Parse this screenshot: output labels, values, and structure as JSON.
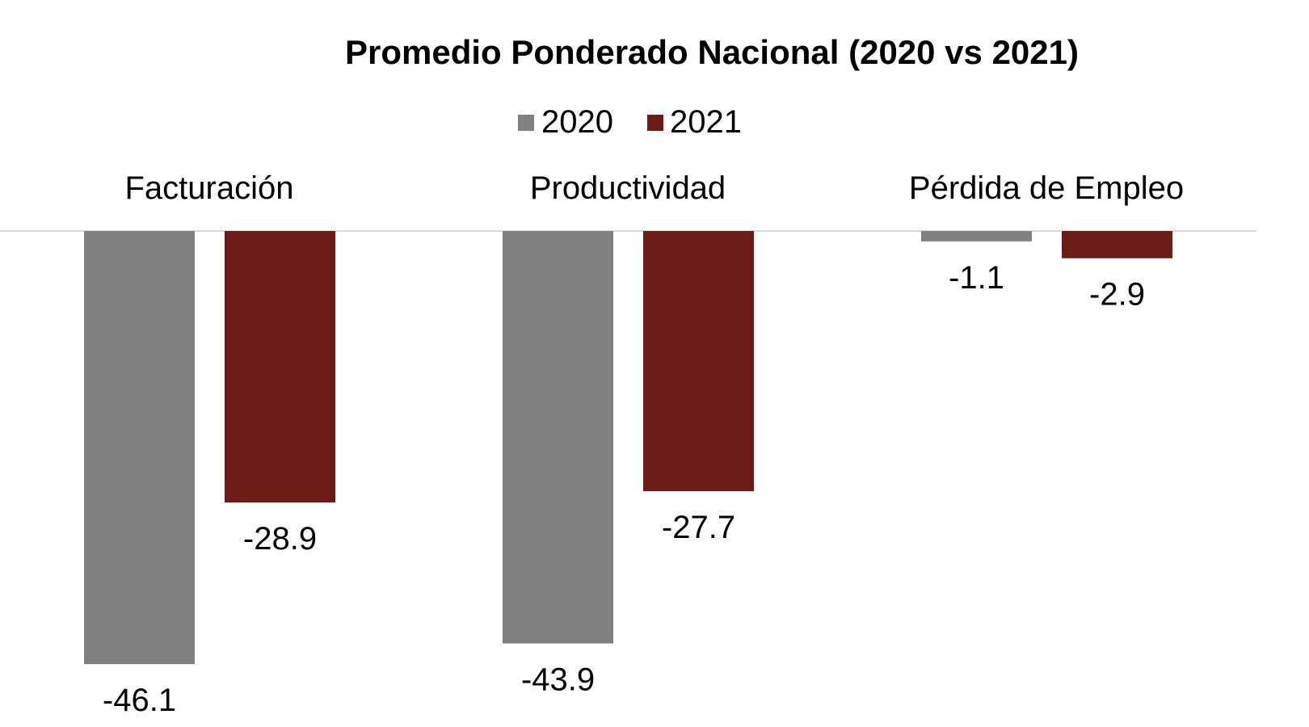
{
  "chart_data": {
    "type": "bar",
    "title": "Promedio Ponderado Nacional (2020 vs 2021)",
    "categories": [
      "Facturación",
      "Productividad",
      "Pérdida de Empleo"
    ],
    "series": [
      {
        "name": "2020",
        "color": "#808080",
        "values": [
          -46.1,
          -43.9,
          -1.1
        ],
        "labels": [
          "-46.1",
          "-43.9",
          "-1.1"
        ]
      },
      {
        "name": "2021",
        "color": "#6b1c17",
        "values": [
          -28.9,
          -27.7,
          -2.9
        ],
        "labels": [
          "-28.9",
          "-27.7",
          "-2.9"
        ]
      }
    ],
    "xlabel": "",
    "ylabel": "",
    "ylim": [
      -50,
      0
    ],
    "grid": false,
    "legend_position": "top-center",
    "axis_color": "#d9d9d9"
  }
}
